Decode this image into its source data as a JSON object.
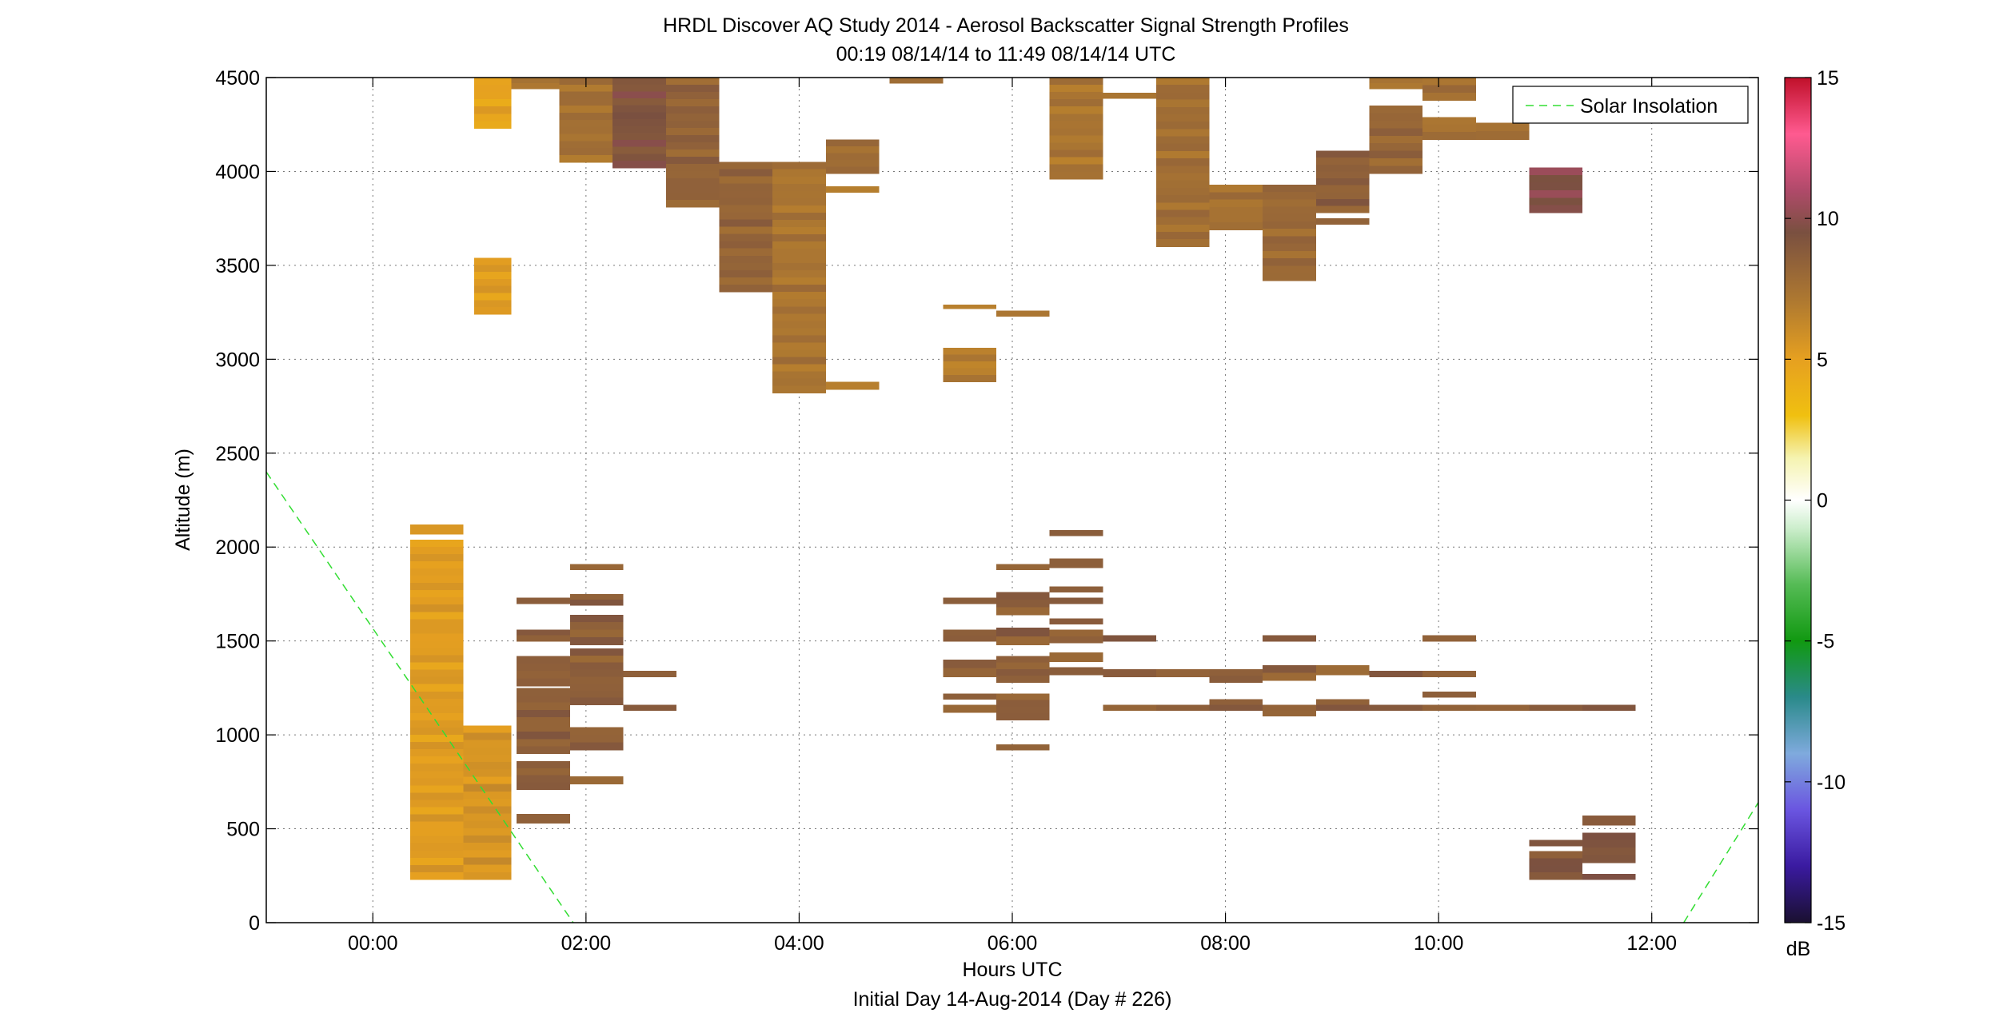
{
  "chart_data": {
    "type": "heatmap",
    "title": "HRDL Discover AQ Study 2014 - Aerosol Backscatter Signal Strength Profiles",
    "subtitle": "00:19 08/14/14 to 11:49 08/14/14  UTC",
    "xlabel": "Hours UTC",
    "ylabel": "Altitude (m)",
    "footer": "Initial Day 14-Aug-2014 (Day # 226)",
    "xlim": [
      -1.0,
      13.0
    ],
    "ylim": [
      0,
      4500
    ],
    "x_ticks": [
      0,
      2,
      4,
      6,
      8,
      10,
      12
    ],
    "x_tick_labels": [
      "00:00",
      "02:00",
      "04:00",
      "06:00",
      "08:00",
      "10:00",
      "12:00"
    ],
    "y_ticks": [
      0,
      500,
      1000,
      1500,
      2000,
      2500,
      3000,
      3500,
      4000,
      4500
    ],
    "y_tick_labels": [
      "0",
      "500",
      "1000",
      "1500",
      "2000",
      "2500",
      "3000",
      "3500",
      "4000",
      "4500"
    ],
    "grid": true,
    "legend": {
      "placement": "top-right",
      "entries": [
        "Solar Insolation"
      ]
    },
    "solar_insolation": {
      "name": "Solar Insolation",
      "color": "#33dd33",
      "segments": [
        [
          [
            -1.0,
            2400
          ],
          [
            1.88,
            0
          ]
        ],
        [
          [
            12.3,
            0
          ],
          [
            13.0,
            640
          ]
        ]
      ]
    },
    "colorbar": {
      "range": [
        -15,
        15
      ],
      "unit": "dB",
      "ticks": [
        15,
        10,
        5,
        0,
        -5,
        -10,
        -15
      ],
      "tick_labels": [
        "15",
        "10",
        "5",
        "0",
        "-5",
        "-10",
        "-15"
      ],
      "stops": [
        [
          -15,
          "#1a1030"
        ],
        [
          -13,
          "#3a1aa0"
        ],
        [
          -11,
          "#6a55e0"
        ],
        [
          -9,
          "#7faadd"
        ],
        [
          -7,
          "#2a8a8a"
        ],
        [
          -5,
          "#119911"
        ],
        [
          -3,
          "#55bb55"
        ],
        [
          -1,
          "#cceecc"
        ],
        [
          0,
          "#ffffff"
        ],
        [
          1.5,
          "#f5f3b0"
        ],
        [
          3,
          "#f0c010"
        ],
        [
          5,
          "#e6a020"
        ],
        [
          7,
          "#b07a30"
        ],
        [
          9.5,
          "#7a5040"
        ],
        [
          11,
          "#b04a6a"
        ],
        [
          13,
          "#ff5a90"
        ],
        [
          15,
          "#c0102a"
        ]
      ]
    },
    "cells": [
      [
        0.95,
        1.3,
        4230,
        4500,
        4.8
      ],
      [
        0.95,
        1.3,
        3240,
        3540,
        5.2
      ],
      [
        1.3,
        1.75,
        4440,
        4500,
        7.2
      ],
      [
        1.75,
        2.25,
        4050,
        4500,
        7.6
      ],
      [
        2.25,
        2.75,
        4020,
        4500,
        9.3
      ],
      [
        2.75,
        3.25,
        3810,
        4500,
        8.4
      ],
      [
        3.25,
        3.75,
        3360,
        4050,
        8.3
      ],
      [
        3.75,
        4.25,
        2820,
        4050,
        7.3
      ],
      [
        4.25,
        4.75,
        3990,
        4170,
        7.8
      ],
      [
        4.25,
        4.75,
        3890,
        3920,
        7.0
      ],
      [
        4.25,
        4.75,
        2840,
        2880,
        7.0
      ],
      [
        4.85,
        5.35,
        4470,
        4500,
        7.8
      ],
      [
        5.35,
        5.85,
        3270,
        3290,
        6.8
      ],
      [
        5.35,
        5.85,
        2880,
        3060,
        6.8
      ],
      [
        5.85,
        6.35,
        3230,
        3260,
        7.0
      ],
      [
        6.35,
        6.85,
        3960,
        4500,
        7.3
      ],
      [
        6.85,
        7.35,
        4390,
        4420,
        7.3
      ],
      [
        7.35,
        7.85,
        3600,
        4500,
        7.7
      ],
      [
        7.85,
        8.35,
        3690,
        3930,
        7.5
      ],
      [
        8.35,
        8.85,
        3420,
        3930,
        8.0
      ],
      [
        8.85,
        9.35,
        3780,
        4110,
        8.6
      ],
      [
        8.85,
        9.35,
        3720,
        3750,
        8.4
      ],
      [
        9.35,
        9.85,
        3990,
        4350,
        8.2
      ],
      [
        9.35,
        9.85,
        4440,
        4500,
        7.4
      ],
      [
        9.85,
        10.35,
        4170,
        4290,
        7.4
      ],
      [
        9.85,
        10.35,
        4380,
        4500,
        7.6
      ],
      [
        10.35,
        10.85,
        4170,
        4260,
        7.4
      ],
      [
        10.85,
        11.35,
        3780,
        4020,
        9.8
      ],
      [
        0.35,
        0.85,
        2070,
        2120,
        5.2
      ],
      [
        0.35,
        0.85,
        230,
        2040,
        5.2
      ],
      [
        0.85,
        1.3,
        230,
        1050,
        5.6
      ],
      [
        1.35,
        1.85,
        1700,
        1730,
        8.6
      ],
      [
        1.35,
        1.85,
        1500,
        1560,
        8.6
      ],
      [
        1.35,
        1.85,
        1260,
        1420,
        8.6
      ],
      [
        1.35,
        1.85,
        900,
        1250,
        8.6
      ],
      [
        1.35,
        1.85,
        710,
        860,
        8.6
      ],
      [
        1.35,
        1.85,
        530,
        580,
        8.6
      ],
      [
        1.85,
        2.35,
        1880,
        1910,
        8.6
      ],
      [
        1.85,
        2.35,
        1690,
        1750,
        8.6
      ],
      [
        1.85,
        2.35,
        1480,
        1640,
        8.6
      ],
      [
        1.85,
        2.35,
        1160,
        1460,
        8.6
      ],
      [
        1.85,
        2.35,
        920,
        1040,
        8.6
      ],
      [
        1.85,
        2.35,
        740,
        780,
        8.6
      ],
      [
        2.35,
        2.85,
        1310,
        1340,
        8.6
      ],
      [
        2.35,
        2.85,
        1130,
        1160,
        8.6
      ],
      [
        5.35,
        5.85,
        1700,
        1730,
        8.6
      ],
      [
        5.35,
        5.85,
        1500,
        1560,
        8.6
      ],
      [
        5.35,
        5.85,
        1310,
        1400,
        8.6
      ],
      [
        5.35,
        5.85,
        1190,
        1220,
        8.6
      ],
      [
        5.35,
        5.85,
        1120,
        1160,
        8.6
      ],
      [
        5.85,
        6.35,
        1880,
        1910,
        8.6
      ],
      [
        5.85,
        6.35,
        1640,
        1760,
        8.6
      ],
      [
        5.85,
        6.35,
        1480,
        1570,
        8.6
      ],
      [
        5.85,
        6.35,
        1280,
        1420,
        8.6
      ],
      [
        5.85,
        6.35,
        1080,
        1220,
        8.6
      ],
      [
        5.85,
        6.35,
        920,
        950,
        8.6
      ],
      [
        6.35,
        6.85,
        2060,
        2090,
        8.6
      ],
      [
        6.35,
        6.85,
        1890,
        1940,
        8.6
      ],
      [
        6.35,
        6.85,
        1760,
        1790,
        8.6
      ],
      [
        6.35,
        6.85,
        1700,
        1730,
        8.6
      ],
      [
        6.35,
        6.85,
        1590,
        1620,
        8.6
      ],
      [
        6.35,
        6.85,
        1490,
        1560,
        8.6
      ],
      [
        6.35,
        6.85,
        1390,
        1440,
        8.6
      ],
      [
        6.35,
        6.85,
        1320,
        1360,
        8.6
      ],
      [
        6.85,
        7.35,
        1500,
        1530,
        8.6
      ],
      [
        6.85,
        7.35,
        1310,
        1350,
        8.6
      ],
      [
        6.85,
        7.35,
        1130,
        1160,
        8.6
      ],
      [
        7.35,
        7.85,
        1310,
        1350,
        8.6
      ],
      [
        7.35,
        7.85,
        1130,
        1160,
        8.6
      ],
      [
        7.85,
        8.35,
        1280,
        1350,
        8.6
      ],
      [
        7.85,
        8.35,
        1130,
        1190,
        8.6
      ],
      [
        8.35,
        8.85,
        1500,
        1530,
        8.6
      ],
      [
        8.35,
        8.85,
        1290,
        1370,
        8.6
      ],
      [
        8.35,
        8.85,
        1100,
        1160,
        8.6
      ],
      [
        8.85,
        9.35,
        1320,
        1370,
        8.6
      ],
      [
        8.85,
        9.35,
        1130,
        1190,
        8.6
      ],
      [
        9.35,
        9.85,
        1310,
        1340,
        8.6
      ],
      [
        9.35,
        9.85,
        1130,
        1160,
        8.6
      ],
      [
        9.85,
        10.35,
        1500,
        1530,
        8.6
      ],
      [
        9.85,
        10.35,
        1310,
        1340,
        8.6
      ],
      [
        9.85,
        10.35,
        1200,
        1230,
        8.6
      ],
      [
        9.85,
        10.35,
        1130,
        1160,
        8.6
      ],
      [
        10.35,
        10.85,
        1130,
        1160,
        8.6
      ],
      [
        10.85,
        11.35,
        1130,
        1160,
        8.6
      ],
      [
        11.35,
        11.85,
        1130,
        1160,
        8.6
      ],
      [
        10.85,
        11.35,
        410,
        440,
        9.2
      ],
      [
        10.85,
        11.35,
        230,
        380,
        9.2
      ],
      [
        11.35,
        11.85,
        520,
        570,
        9.2
      ],
      [
        11.35,
        11.85,
        320,
        480,
        9.2
      ],
      [
        11.35,
        11.85,
        230,
        260,
        9.2
      ]
    ]
  }
}
